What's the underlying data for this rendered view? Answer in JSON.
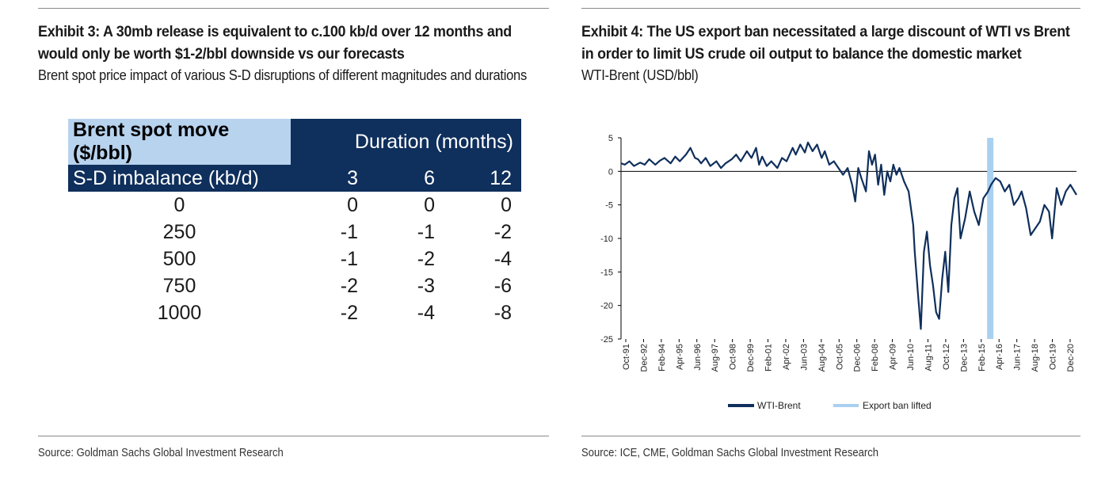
{
  "left": {
    "title": "Exhibit 3: A 30mb release is equivalent to c.100 kb/d over 12 months and would only be worth $1-2/bbl downside vs our forecasts",
    "subtitle": "Brent spot price impact of various S-D disruptions of different magnitudes and durations",
    "source": "Source: Goldman Sachs Global Investment Research",
    "table": {
      "corner_header": "Brent spot move ($/bbl)",
      "duration_header": "Duration (months)",
      "row_header": "S-D imbalance (kb/d)",
      "columns": [
        "3",
        "6",
        "12"
      ],
      "rows": [
        {
          "label": "0",
          "values": [
            "0",
            "0",
            "0"
          ]
        },
        {
          "label": "250",
          "values": [
            "-1",
            "-1",
            "-2"
          ]
        },
        {
          "label": "500",
          "values": [
            "-1",
            "-2",
            "-4"
          ]
        },
        {
          "label": "750",
          "values": [
            "-2",
            "-3",
            "-6"
          ]
        },
        {
          "label": "1000",
          "values": [
            "-2",
            "-4",
            "-8"
          ]
        }
      ]
    }
  },
  "right": {
    "title": "Exhibit 4: The US export ban necessitated a large discount of WTI vs Brent in order to limit US crude oil output to balance the domestic market",
    "subtitle": "WTI-Brent (USD/bbl)",
    "source": "Source: ICE, CME, Goldman Sachs Global Investment Research"
  },
  "chart_data": {
    "type": "line",
    "title": "WTI-Brent (USD/bbl)",
    "ylim": [
      -25,
      5
    ],
    "yticks": [
      "5",
      "0",
      "-5",
      "-10",
      "-15",
      "-20",
      "-25"
    ],
    "ytick_values": [
      5,
      0,
      -5,
      -10,
      -15,
      -20,
      -25
    ],
    "x_tick_labels": [
      "Oct-91",
      "Dec-92",
      "Feb-94",
      "Apr-95",
      "Jun-96",
      "Aug-97",
      "Oct-98",
      "Dec-99",
      "Feb-01",
      "Apr-02",
      "Jun-03",
      "Aug-04",
      "Oct-05",
      "Dec-06",
      "Feb-08",
      "Apr-09",
      "Jun-10",
      "Aug-11",
      "Oct-12",
      "Dec-13",
      "Feb-15",
      "Apr-16",
      "Jun-17",
      "Aug-18",
      "Oct-19",
      "Dec-20"
    ],
    "x_start": 1991.75,
    "x_end": 2021.6,
    "export_ban_lifted_x": 2015.95,
    "legend": [
      "WTI-Brent",
      "Export ban lifted"
    ],
    "series": [
      {
        "name": "WTI-Brent",
        "x": [
          1991.75,
          1992.0,
          1992.3,
          1992.6,
          1993.0,
          1993.3,
          1993.6,
          1994.0,
          1994.3,
          1994.6,
          1995.0,
          1995.3,
          1995.6,
          1996.0,
          1996.3,
          1996.6,
          1996.8,
          1997.0,
          1997.3,
          1997.6,
          1998.0,
          1998.3,
          1998.6,
          1999.0,
          1999.3,
          1999.6,
          2000.0,
          2000.3,
          2000.6,
          2000.8,
          2001.0,
          2001.3,
          2001.6,
          2002.0,
          2002.3,
          2002.6,
          2003.0,
          2003.2,
          2003.5,
          2003.8,
          2004.0,
          2004.3,
          2004.6,
          2004.9,
          2005.1,
          2005.4,
          2005.7,
          2006.0,
          2006.3,
          2006.6,
          2006.9,
          2007.1,
          2007.3,
          2007.5,
          2007.8,
          2008.0,
          2008.2,
          2008.4,
          2008.6,
          2008.8,
          2009.0,
          2009.2,
          2009.4,
          2009.6,
          2009.8,
          2010.0,
          2010.3,
          2010.6,
          2010.9,
          2011.0,
          2011.2,
          2011.4,
          2011.6,
          2011.8,
          2012.0,
          2012.2,
          2012.4,
          2012.6,
          2012.8,
          2013.0,
          2013.2,
          2013.4,
          2013.6,
          2013.8,
          2014.0,
          2014.3,
          2014.6,
          2014.9,
          2015.2,
          2015.5,
          2015.8,
          2016.0,
          2016.3,
          2016.6,
          2016.9,
          2017.2,
          2017.5,
          2017.8,
          2018.0,
          2018.3,
          2018.6,
          2018.9,
          2019.2,
          2019.5,
          2019.8,
          2020.0,
          2020.3,
          2020.6,
          2020.9,
          2021.2,
          2021.6
        ],
        "values": [
          1.2,
          1.0,
          1.5,
          0.8,
          1.3,
          1.0,
          1.8,
          1.0,
          1.6,
          2.0,
          1.2,
          2.2,
          1.5,
          2.5,
          3.5,
          2.0,
          1.8,
          1.2,
          2.0,
          0.8,
          1.5,
          0.5,
          1.2,
          1.8,
          2.5,
          1.5,
          3.0,
          2.0,
          3.5,
          1.0,
          2.2,
          0.8,
          1.5,
          0.5,
          2.0,
          1.5,
          3.5,
          2.5,
          4.0,
          2.8,
          4.3,
          3.0,
          4.0,
          2.0,
          3.0,
          1.0,
          1.5,
          0.5,
          -0.5,
          0.5,
          -2.0,
          -4.5,
          0.5,
          -1.0,
          -3.0,
          3.0,
          1.0,
          2.5,
          -2.0,
          1.0,
          -3.5,
          0.0,
          -1.5,
          1.0,
          -0.5,
          0.5,
          -1.5,
          -3.0,
          -8.0,
          -12.0,
          -18.0,
          -23.5,
          -12.0,
          -9.0,
          -14.0,
          -17.0,
          -21.0,
          -22.0,
          -16.0,
          -12.0,
          -18.0,
          -8.0,
          -4.0,
          -2.5,
          -10.0,
          -7.0,
          -3.0,
          -6.0,
          -8.0,
          -4.0,
          -3.0,
          -2.0,
          -1.0,
          -1.5,
          -3.0,
          -2.0,
          -5.0,
          -4.0,
          -3.0,
          -5.5,
          -9.5,
          -8.5,
          -7.5,
          -5.0,
          -6.0,
          -10.0,
          -2.5,
          -5.0,
          -3.0,
          -2.0,
          -3.5
        ]
      }
    ]
  }
}
